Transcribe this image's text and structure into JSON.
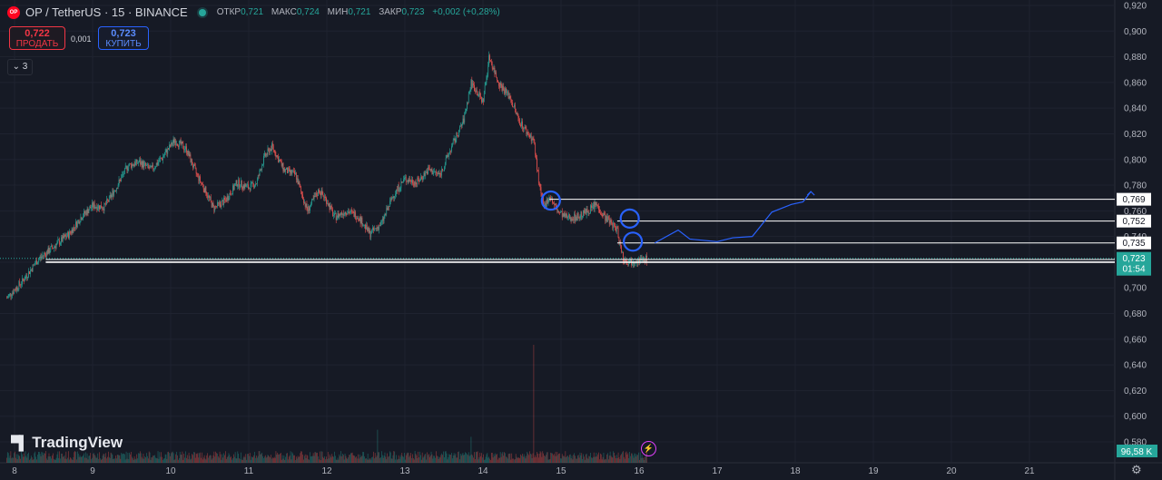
{
  "header": {
    "symbol": "OP / TetherUS · 15 · BINANCE",
    "logo_text": "OP",
    "ohlc": [
      {
        "label": "ОТКР",
        "value": "0,721"
      },
      {
        "label": "МАКС",
        "value": "0,724"
      },
      {
        "label": "МИН",
        "value": "0,721"
      },
      {
        "label": "ЗАКР",
        "value": "0,723"
      }
    ],
    "change": "+0,002 (+0,28%)"
  },
  "trade": {
    "sell_price": "0,722",
    "sell_label": "ПРОДАТЬ",
    "buy_price": "0,723",
    "buy_label": "КУПИТЬ",
    "spread": "0,001"
  },
  "indicators_toggle": "3",
  "watermark": "TradingView",
  "colors": {
    "background": "#161a25",
    "up": "#26a69a",
    "down": "#ef5350",
    "drawing": "#2962ff",
    "line_white": "#ffffff"
  },
  "chart_data": {
    "type": "candlestick",
    "title": "OP / TetherUS · 15 · BINANCE",
    "xlabel": "",
    "ylabel": "",
    "x_tick_labels": [
      "8",
      "9",
      "10",
      "11",
      "12",
      "13",
      "14",
      "15",
      "16",
      "17",
      "18",
      "19",
      "20",
      "21"
    ],
    "y_tick_labels": [
      "0,580",
      "0,600",
      "0,620",
      "0,640",
      "0,660",
      "0,680",
      "0,700",
      "0,720",
      "0,740",
      "0,760",
      "0,780",
      "0,800",
      "0,820",
      "0,840",
      "0,860",
      "0,880",
      "0,900",
      "0,920"
    ],
    "x_range": [
      8,
      21.7
    ],
    "y_range": [
      0.575,
      0.924
    ],
    "grid": true,
    "price_path": [
      [
        7.9,
        0.692
      ],
      [
        8.1,
        0.705
      ],
      [
        8.3,
        0.722
      ],
      [
        8.5,
        0.732
      ],
      [
        8.7,
        0.742
      ],
      [
        8.85,
        0.755
      ],
      [
        9.0,
        0.764
      ],
      [
        9.15,
        0.763
      ],
      [
        9.3,
        0.778
      ],
      [
        9.45,
        0.795
      ],
      [
        9.6,
        0.798
      ],
      [
        9.75,
        0.792
      ],
      [
        9.9,
        0.802
      ],
      [
        10.05,
        0.815
      ],
      [
        10.2,
        0.808
      ],
      [
        10.32,
        0.79
      ],
      [
        10.45,
        0.775
      ],
      [
        10.55,
        0.762
      ],
      [
        10.7,
        0.768
      ],
      [
        10.85,
        0.782
      ],
      [
        11.0,
        0.778
      ],
      [
        11.1,
        0.782
      ],
      [
        11.2,
        0.802
      ],
      [
        11.3,
        0.81
      ],
      [
        11.45,
        0.792
      ],
      [
        11.6,
        0.788
      ],
      [
        11.75,
        0.76
      ],
      [
        11.9,
        0.776
      ],
      [
        12.0,
        0.768
      ],
      [
        12.1,
        0.755
      ],
      [
        12.25,
        0.76
      ],
      [
        12.4,
        0.756
      ],
      [
        12.55,
        0.742
      ],
      [
        12.7,
        0.75
      ],
      [
        12.85,
        0.772
      ],
      [
        13.0,
        0.785
      ],
      [
        13.15,
        0.782
      ],
      [
        13.3,
        0.792
      ],
      [
        13.45,
        0.788
      ],
      [
        13.6,
        0.81
      ],
      [
        13.75,
        0.83
      ],
      [
        13.85,
        0.86
      ],
      [
        14.0,
        0.845
      ],
      [
        14.08,
        0.88
      ],
      [
        14.2,
        0.86
      ],
      [
        14.35,
        0.848
      ],
      [
        14.45,
        0.832
      ],
      [
        14.55,
        0.822
      ],
      [
        14.65,
        0.815
      ],
      [
        14.72,
        0.78
      ],
      [
        14.78,
        0.762
      ],
      [
        14.85,
        0.772
      ],
      [
        14.95,
        0.76
      ],
      [
        15.05,
        0.755
      ],
      [
        15.2,
        0.755
      ],
      [
        15.35,
        0.76
      ],
      [
        15.45,
        0.765
      ],
      [
        15.55,
        0.756
      ],
      [
        15.65,
        0.75
      ],
      [
        15.72,
        0.745
      ],
      [
        15.8,
        0.722
      ],
      [
        15.88,
        0.72
      ],
      [
        15.95,
        0.722
      ],
      [
        16.05,
        0.721
      ],
      [
        16.1,
        0.723
      ]
    ],
    "current_price": 0.723,
    "countdown": "01:54",
    "horizontal_levels": [
      {
        "value": 0.769,
        "label": "0,769",
        "start_x": 14.85
      },
      {
        "value": 0.752,
        "label": "0,752",
        "start_x": 15.72
      },
      {
        "value": 0.735,
        "label": "0,735",
        "start_x": 15.72
      },
      {
        "value": 0.72,
        "label": "0,720",
        "start_x": 8.4
      }
    ],
    "circle_markers": [
      {
        "x": 14.87,
        "y": 0.768
      },
      {
        "x": 15.88,
        "y": 0.754
      },
      {
        "x": 15.92,
        "y": 0.736
      }
    ],
    "projection_path": [
      [
        16.2,
        0.735
      ],
      [
        16.5,
        0.745
      ],
      [
        16.65,
        0.738
      ],
      [
        17.0,
        0.736
      ],
      [
        17.2,
        0.739
      ],
      [
        17.45,
        0.74
      ],
      [
        17.7,
        0.759
      ],
      [
        17.95,
        0.765
      ],
      [
        18.1,
        0.767
      ],
      [
        18.2,
        0.775
      ]
    ],
    "volume_label": "96,58 K",
    "volume_spikes": [
      {
        "x": 14.65,
        "relative": 1.0
      },
      {
        "x": 12.65,
        "relative": 0.28
      },
      {
        "x": 13.85,
        "relative": 0.22
      }
    ]
  }
}
